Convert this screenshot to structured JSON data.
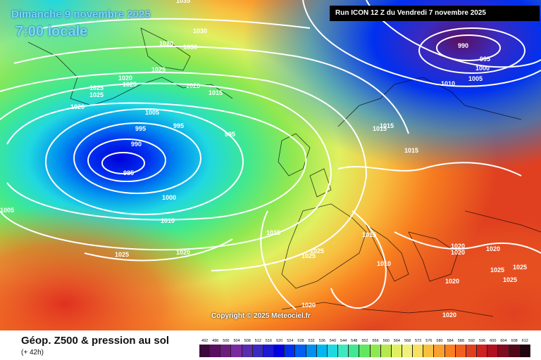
{
  "header": {
    "date": "Dimanche 9 novembre 2025",
    "time": "7:00 locale",
    "run": "Run ICON 12 Z du Vendredi 7 novembre 2025"
  },
  "copyright": "Copyright © 2025 Meteociel.fr",
  "footer": {
    "title": "Géop. Z500 & pression au sol",
    "subtitle": "(+ 42h)"
  },
  "scale": {
    "labels": [
      "492",
      "496",
      "500",
      "504",
      "508",
      "512",
      "516",
      "520",
      "524",
      "528",
      "532",
      "536",
      "540",
      "544",
      "548",
      "552",
      "556",
      "560",
      "564",
      "568",
      "572",
      "576",
      "580",
      "584",
      "588",
      "592",
      "596",
      "600",
      "604",
      "608",
      "612"
    ],
    "colors": [
      "#3a0a3a",
      "#5a1060",
      "#6e1c80",
      "#7a2aa0",
      "#5a2ab0",
      "#3a2ac0",
      "#1a1ad0",
      "#0000e0",
      "#0030f0",
      "#0060f0",
      "#0090f0",
      "#00b8f0",
      "#20d8e0",
      "#40e8c0",
      "#40e890",
      "#60e860",
      "#90e850",
      "#b8e850",
      "#e0f060",
      "#f0f080",
      "#f8e060",
      "#f8c040",
      "#f8a030",
      "#f88020",
      "#f06020",
      "#e04020",
      "#d02020",
      "#b01020",
      "#800a20",
      "#500818",
      "#200410"
    ]
  },
  "isobars": [
    {
      "text": "985"
    },
    {
      "text": "990"
    },
    {
      "text": "995"
    },
    {
      "text": "995"
    },
    {
      "text": "995"
    },
    {
      "text": "1000"
    },
    {
      "text": "1005"
    },
    {
      "text": "1010"
    },
    {
      "text": "1015"
    },
    {
      "text": "1020"
    },
    {
      "text": "1020"
    },
    {
      "text": "1025"
    },
    {
      "text": "1025"
    },
    {
      "text": "1020"
    },
    {
      "text": "1025"
    },
    {
      "text": "1030"
    },
    {
      "text": "1030"
    },
    {
      "text": "1035"
    },
    {
      "text": "1020"
    },
    {
      "text": "1025"
    },
    {
      "text": "1020"
    },
    {
      "text": "990"
    },
    {
      "text": "995"
    },
    {
      "text": "1000"
    },
    {
      "text": "1005"
    },
    {
      "text": "1010"
    },
    {
      "text": "1015"
    },
    {
      "text": "1015"
    },
    {
      "text": "1015"
    },
    {
      "text": "1015"
    },
    {
      "text": "1015"
    },
    {
      "text": "1010"
    },
    {
      "text": "1020"
    },
    {
      "text": "1020"
    },
    {
      "text": "1020"
    },
    {
      "text": "1025"
    },
    {
      "text": "1025"
    },
    {
      "text": "1025"
    },
    {
      "text": "1020"
    },
    {
      "text": "1020"
    },
    {
      "text": "1025"
    },
    {
      "text": "1020"
    },
    {
      "text": "1025"
    },
    {
      "text": "1025"
    },
    {
      "text": "1005"
    }
  ]
}
